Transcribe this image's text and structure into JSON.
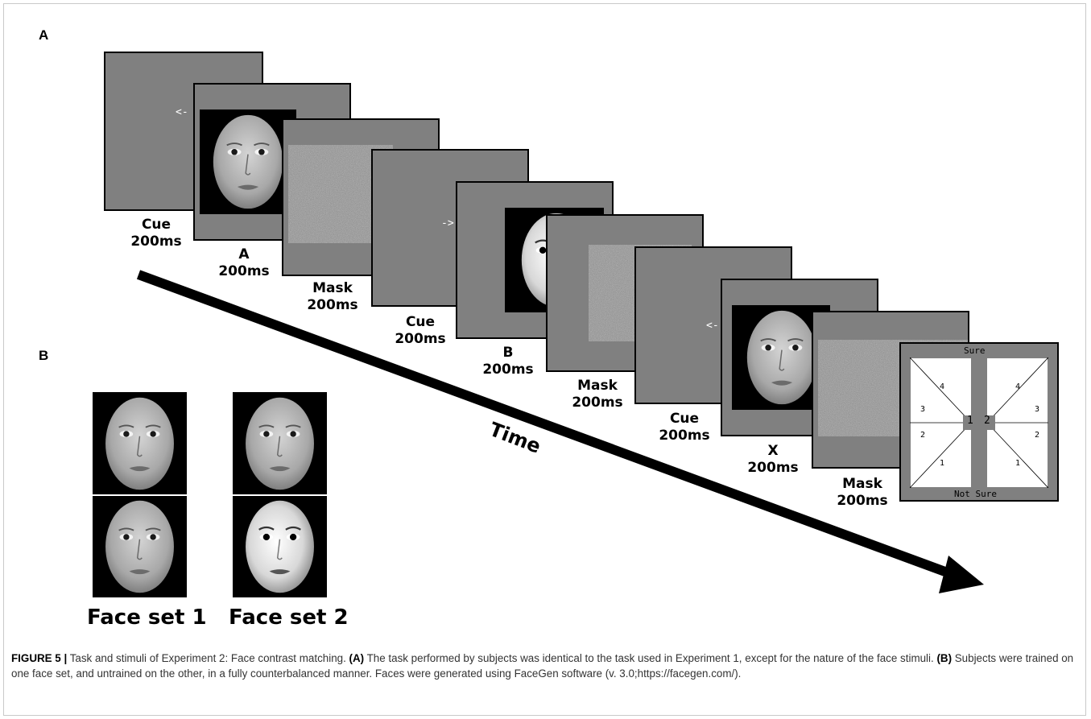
{
  "panel_a_label": "A",
  "panel_b_label": "B",
  "sequence": [
    {
      "name": "Cue",
      "duration": "200ms"
    },
    {
      "name": "A",
      "duration": "200ms"
    },
    {
      "name": "Mask",
      "duration": "200ms"
    },
    {
      "name": "Cue",
      "duration": "200ms"
    },
    {
      "name": "B",
      "duration": "200ms"
    },
    {
      "name": "Mask",
      "duration": "200ms"
    },
    {
      "name": "Cue",
      "duration": "200ms"
    },
    {
      "name": "X",
      "duration": "200ms"
    },
    {
      "name": "Mask",
      "duration": "200ms"
    }
  ],
  "cue_arrows": {
    "left": "<-",
    "right": "->"
  },
  "time_label": "Time",
  "response_screen": {
    "top": "Sure",
    "bottom": "Not Sure",
    "left_choice": "1",
    "right_choice": "2",
    "levels": [
      "4",
      "3",
      "2",
      "1"
    ]
  },
  "face_sets": [
    "Face set 1",
    "Face set 2"
  ],
  "caption": {
    "figure_label": "FIGURE 5 |",
    "text_1": " Task and stimuli of Experiment 2: Face contrast matching. ",
    "a_label": "(A)",
    "text_2": " The task performed by subjects was identical to the task used in Experiment 1, except for the nature of the face stimuli. ",
    "b_label": "(B)",
    "text_3": " Subjects were trained on one face set, and untrained on the other, in a fully counterbalanced manner. Faces were generated using FaceGen software (v. 3.0;https://facegen.com/)."
  },
  "colors": {
    "screen_gray": "#808080",
    "border": "#000000",
    "caption_text": "#333333"
  }
}
